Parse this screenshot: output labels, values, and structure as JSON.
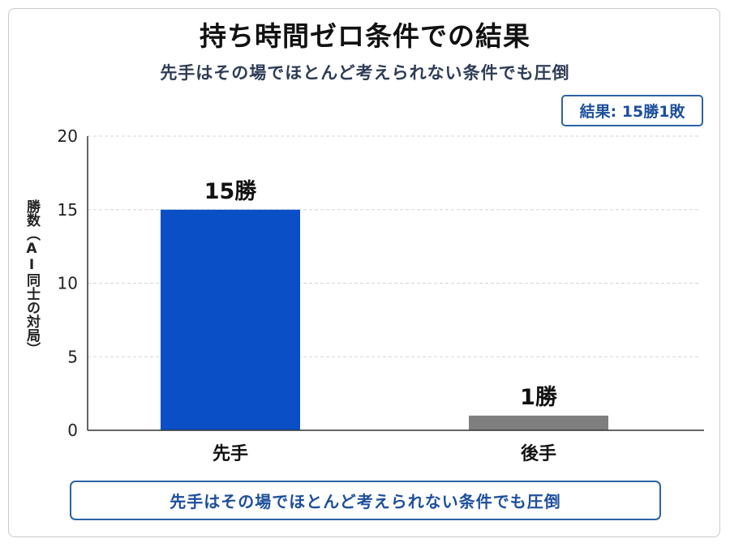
{
  "chart_data": {
    "type": "bar",
    "title": "持ち時間ゼロ条件での結果",
    "subtitle": "先手はその場でほとんど考えられない条件でも圧倒",
    "ylabel": "勝数（AI同士の対局）",
    "xlabel": "",
    "categories": [
      "先手",
      "後手"
    ],
    "values": [
      15,
      1
    ],
    "data_labels": [
      "15勝",
      "1勝"
    ],
    "colors": [
      "#0a4fc6",
      "#7f7f7f"
    ],
    "ylim": [
      0,
      20
    ],
    "yticks": [
      0,
      5,
      10,
      15,
      20
    ],
    "grid": true,
    "legend": "none"
  },
  "badge": {
    "text": "結果: 15勝1敗"
  },
  "footer": {
    "text": "先手はその場でほとんど考えられない条件でも圧倒"
  }
}
